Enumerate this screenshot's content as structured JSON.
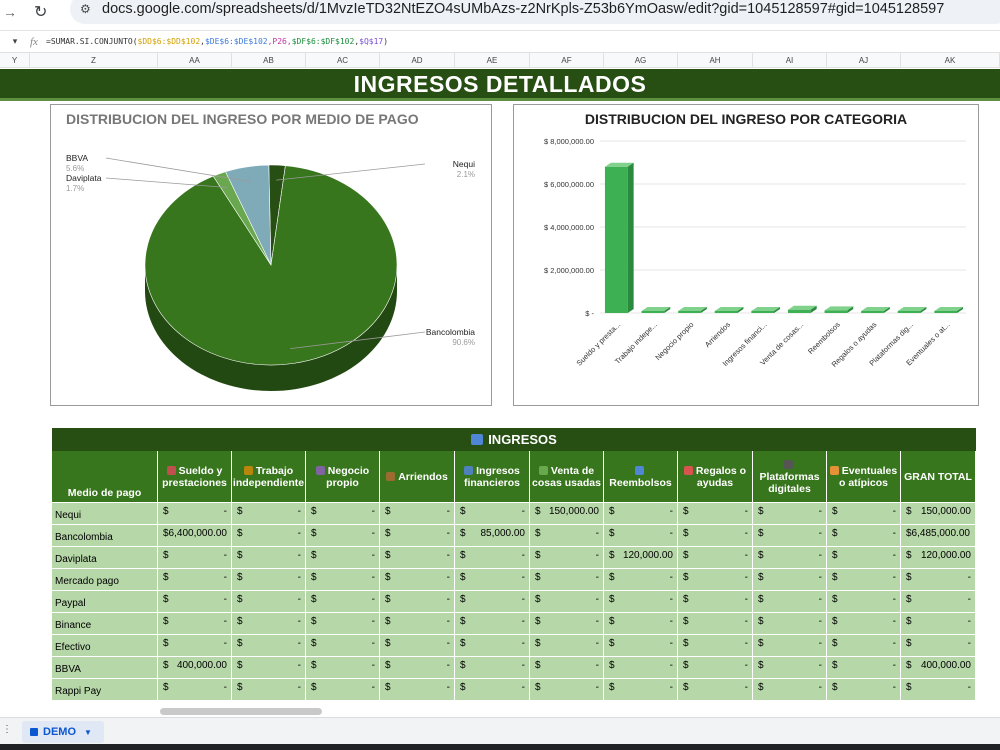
{
  "browser": {
    "url": "docs.google.com/spreadsheets/d/1MvzIeTD32NtEZO4sUMbAzs-z2NrKpls-Z53b6YmOasw/edit?gid=1045128597#gid=1045128597"
  },
  "formula_bar": {
    "fx": "fx",
    "p0": "=SUMAR.SI.CONJUNTO(",
    "p1": "$DD$6:$DD$102",
    "p2": ",",
    "p3": "$DE$6:$DE$102",
    "p4": ",P26,",
    "p5": "$DF$6:$DF$102",
    "p6": ",",
    "p7": "$Q$17",
    "p8": ")"
  },
  "columns": [
    "Y",
    "Z",
    "AA",
    "AB",
    "AC",
    "AD",
    "AE",
    "AF",
    "AG",
    "AH",
    "AI",
    "AJ",
    "AK"
  ],
  "title": "INGRESOS DETALLADOS",
  "pie_chart": {
    "title": "DISTRIBUCION DEL INGRESO POR MEDIO DE PAGO",
    "slices": [
      {
        "name": "Bancolombia",
        "value": 90.6,
        "label": "90.6%",
        "color": "#38761d"
      },
      {
        "name": "Daviplata",
        "value": 1.7,
        "label": "1.7%",
        "color": "#6aa84f"
      },
      {
        "name": "BBVA",
        "value": 5.6,
        "label": "5.6%",
        "color": "#7faab8"
      },
      {
        "name": "Nequi",
        "value": 2.1,
        "label": "2.1%",
        "color": "#274e13"
      }
    ]
  },
  "chart_data": {
    "type": "bar",
    "title": "DISTRIBUCION DEL INGRESO POR CATEGORIA",
    "categories": [
      "Sueldo y presta...",
      "Trabajo indepe...",
      "Negocio propio",
      "Arriendos",
      "Ingresos financi...",
      "Venta de cosas...",
      "Reembolsos",
      "Regalos o ayudas",
      "Plataformas dig...",
      "Eventuales o at..."
    ],
    "values": [
      6800000,
      0,
      0,
      0,
      85000,
      150000,
      120000,
      0,
      0,
      0
    ],
    "ylim": [
      0,
      8000000
    ],
    "yticks": [
      "$ -",
      "$ 2,000,000.00",
      "$ 4,000,000.00",
      "$ 6,000,000.00",
      "$ 8,000,000.00"
    ],
    "color": "#3cb052",
    "grid": true
  },
  "table": {
    "title": "INGRESOS",
    "headers": [
      "Medio de pago",
      "Sueldo y prestaciones",
      "Trabajo independiente",
      "Negocio propio",
      "Arriendos",
      "Ingresos financieros",
      "Venta de cosas usadas",
      "Reembolsos",
      "Regalos o ayudas",
      "Plataformas digitales",
      "Eventuales o atípicos",
      "GRAN TOTAL"
    ],
    "header_icon_colors": [
      "",
      "#c0504d",
      "#b8860b",
      "#8064a2",
      "#9c6b30",
      "#4f81bd",
      "#6aa84f",
      "#4f86d6",
      "#d9534f",
      "#555555",
      "#e69138",
      ""
    ],
    "rows": [
      {
        "name": "Nequi",
        "values": [
          "-",
          "-",
          "-",
          "-",
          "-",
          "150,000.00",
          "-",
          "-",
          "-",
          "-",
          "150,000.00"
        ]
      },
      {
        "name": "Bancolombia",
        "values": [
          "$6,400,000.00",
          "-",
          "-",
          "-",
          "85,000.00",
          "-",
          "-",
          "-",
          "-",
          "-",
          "$6,485,000.00"
        ]
      },
      {
        "name": "Daviplata",
        "values": [
          "-",
          "-",
          "-",
          "-",
          "-",
          "-",
          "120,000.00",
          "-",
          "-",
          "-",
          "120,000.00"
        ]
      },
      {
        "name": "Mercado pago",
        "values": [
          "-",
          "-",
          "-",
          "-",
          "-",
          "-",
          "-",
          "-",
          "-",
          "-",
          "-"
        ]
      },
      {
        "name": "Paypal",
        "values": [
          "-",
          "-",
          "-",
          "-",
          "-",
          "-",
          "-",
          "-",
          "-",
          "-",
          "-"
        ]
      },
      {
        "name": "Binance",
        "values": [
          "-",
          "-",
          "-",
          "-",
          "-",
          "-",
          "-",
          "-",
          "-",
          "-",
          "-"
        ]
      },
      {
        "name": "Efectivo",
        "values": [
          "-",
          "-",
          "-",
          "-",
          "-",
          "-",
          "-",
          "-",
          "-",
          "-",
          "-"
        ]
      },
      {
        "name": "BBVA",
        "values": [
          "400,000.00",
          "-",
          "-",
          "-",
          "-",
          "-",
          "-",
          "-",
          "-",
          "-",
          "400,000.00"
        ]
      },
      {
        "name": "Rappi Pay",
        "values": [
          "-",
          "-",
          "-",
          "-",
          "-",
          "-",
          "-",
          "-",
          "-",
          "-",
          "-"
        ]
      }
    ]
  },
  "sheet_tab": {
    "name": "DEMO"
  }
}
